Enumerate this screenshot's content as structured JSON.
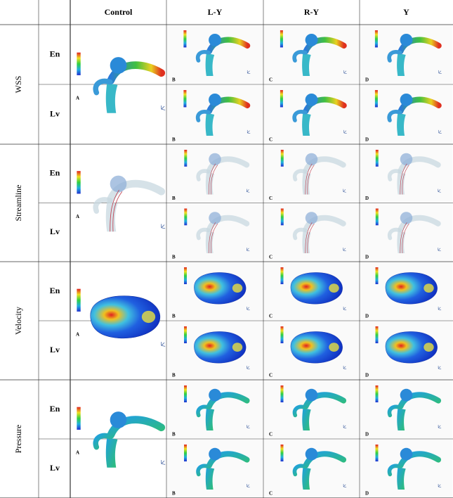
{
  "header": {
    "columns": [
      "Control",
      "L-Y",
      "R-Y",
      "Y"
    ]
  },
  "groups": [
    {
      "label": "WSS",
      "rows": [
        "En",
        "Lv"
      ]
    },
    {
      "label": "Streamline",
      "rows": [
        "En",
        "Lv"
      ]
    },
    {
      "label": "Velocity",
      "rows": [
        "En",
        "Lv"
      ]
    },
    {
      "label": "Pressure",
      "rows": [
        "En",
        "Lv"
      ]
    }
  ],
  "panel_letters": [
    "A",
    "B",
    "C",
    "D"
  ]
}
